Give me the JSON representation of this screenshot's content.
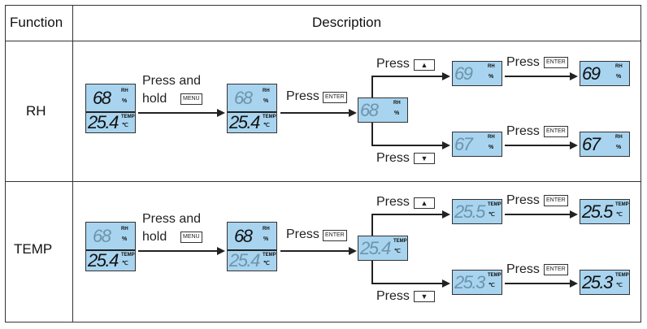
{
  "header": {
    "function": "Function",
    "description": "Description"
  },
  "labels": {
    "press_and": "Press and",
    "hold": "hold",
    "press": "Press",
    "menu_key": "MENU",
    "enter_key": "ENTER",
    "up_key": "▲",
    "down_key": "▼"
  },
  "lcd_colors": {
    "background": "#a8d4ef",
    "dim_digits": "#6d94ab",
    "active_digits": "#111111"
  },
  "rows": [
    {
      "function": "RH",
      "start": {
        "top": "68",
        "top_label": "RH",
        "top_unit": "%",
        "bottom": "25.4",
        "bottom_label": "TEMP",
        "bottom_unit": "℃",
        "top_active": true,
        "bottom_active": true
      },
      "menu": {
        "top": "68",
        "top_label": "RH",
        "top_unit": "%",
        "bottom": "25.4",
        "bottom_label": "TEMP",
        "bottom_unit": "℃",
        "top_active": false,
        "bottom_active": true
      },
      "edit": {
        "value": "68",
        "label": "RH",
        "unit": "%"
      },
      "up": {
        "value": "69",
        "label": "RH",
        "unit": "%"
      },
      "up_saved": {
        "value": "69",
        "label": "RH",
        "unit": "%"
      },
      "down": {
        "value": "67",
        "label": "RH",
        "unit": "%"
      },
      "down_saved": {
        "value": "67",
        "label": "RH",
        "unit": "%"
      }
    },
    {
      "function": "TEMP",
      "start": {
        "top": "68",
        "top_label": "RH",
        "top_unit": "%",
        "bottom": "25.4",
        "bottom_label": "TEMP",
        "bottom_unit": "℃",
        "top_active": false,
        "bottom_active": true
      },
      "menu": {
        "top": "68",
        "top_label": "RH",
        "top_unit": "%",
        "bottom": "25.4",
        "bottom_label": "TEMP",
        "bottom_unit": "℃",
        "top_active": true,
        "bottom_active": false
      },
      "edit": {
        "value": "25.4",
        "label": "TEMP",
        "unit": "℃"
      },
      "up": {
        "value": "25.5",
        "label": "TEMP",
        "unit": "℃"
      },
      "up_saved": {
        "value": "25.5",
        "label": "TEMP",
        "unit": "℃"
      },
      "down": {
        "value": "25.3",
        "label": "TEMP",
        "unit": "℃"
      },
      "down_saved": {
        "value": "25.3",
        "label": "TEMP",
        "unit": "℃"
      }
    }
  ]
}
